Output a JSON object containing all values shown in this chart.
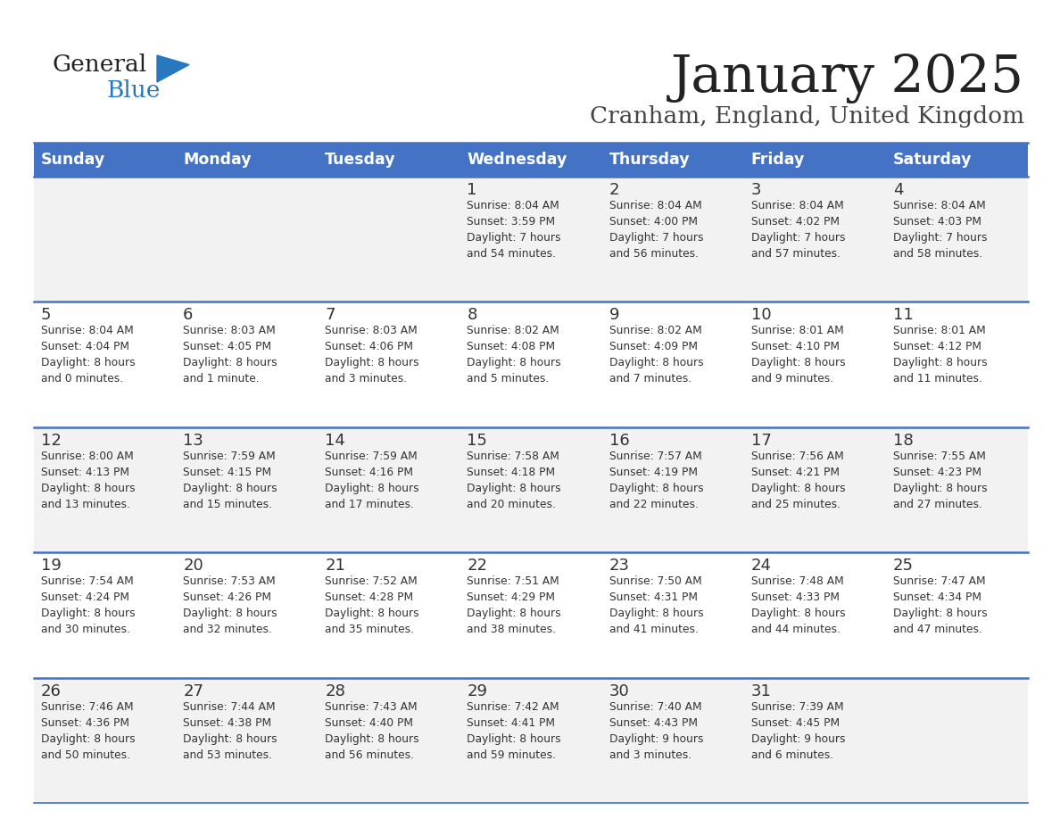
{
  "title": "January 2025",
  "subtitle": "Cranham, England, United Kingdom",
  "days_of_week": [
    "Sunday",
    "Monday",
    "Tuesday",
    "Wednesday",
    "Thursday",
    "Friday",
    "Saturday"
  ],
  "header_bg_color": "#4472C4",
  "header_text_color": "#FFFFFF",
  "cell_bg_even": "#F2F2F2",
  "cell_bg_odd": "#FFFFFF",
  "title_color": "#222222",
  "subtitle_color": "#444444",
  "day_num_color": "#333333",
  "cell_text_color": "#333333",
  "divider_color": "#4472C4",
  "logo_general_color": "#222222",
  "logo_blue_color": "#2878C0",
  "logo_triangle_color": "#2878C0",
  "calendar_data": [
    [
      {
        "day": null,
        "info": null
      },
      {
        "day": null,
        "info": null
      },
      {
        "day": null,
        "info": null
      },
      {
        "day": 1,
        "info": "Sunrise: 8:04 AM\nSunset: 3:59 PM\nDaylight: 7 hours\nand 54 minutes."
      },
      {
        "day": 2,
        "info": "Sunrise: 8:04 AM\nSunset: 4:00 PM\nDaylight: 7 hours\nand 56 minutes."
      },
      {
        "day": 3,
        "info": "Sunrise: 8:04 AM\nSunset: 4:02 PM\nDaylight: 7 hours\nand 57 minutes."
      },
      {
        "day": 4,
        "info": "Sunrise: 8:04 AM\nSunset: 4:03 PM\nDaylight: 7 hours\nand 58 minutes."
      }
    ],
    [
      {
        "day": 5,
        "info": "Sunrise: 8:04 AM\nSunset: 4:04 PM\nDaylight: 8 hours\nand 0 minutes."
      },
      {
        "day": 6,
        "info": "Sunrise: 8:03 AM\nSunset: 4:05 PM\nDaylight: 8 hours\nand 1 minute."
      },
      {
        "day": 7,
        "info": "Sunrise: 8:03 AM\nSunset: 4:06 PM\nDaylight: 8 hours\nand 3 minutes."
      },
      {
        "day": 8,
        "info": "Sunrise: 8:02 AM\nSunset: 4:08 PM\nDaylight: 8 hours\nand 5 minutes."
      },
      {
        "day": 9,
        "info": "Sunrise: 8:02 AM\nSunset: 4:09 PM\nDaylight: 8 hours\nand 7 minutes."
      },
      {
        "day": 10,
        "info": "Sunrise: 8:01 AM\nSunset: 4:10 PM\nDaylight: 8 hours\nand 9 minutes."
      },
      {
        "day": 11,
        "info": "Sunrise: 8:01 AM\nSunset: 4:12 PM\nDaylight: 8 hours\nand 11 minutes."
      }
    ],
    [
      {
        "day": 12,
        "info": "Sunrise: 8:00 AM\nSunset: 4:13 PM\nDaylight: 8 hours\nand 13 minutes."
      },
      {
        "day": 13,
        "info": "Sunrise: 7:59 AM\nSunset: 4:15 PM\nDaylight: 8 hours\nand 15 minutes."
      },
      {
        "day": 14,
        "info": "Sunrise: 7:59 AM\nSunset: 4:16 PM\nDaylight: 8 hours\nand 17 minutes."
      },
      {
        "day": 15,
        "info": "Sunrise: 7:58 AM\nSunset: 4:18 PM\nDaylight: 8 hours\nand 20 minutes."
      },
      {
        "day": 16,
        "info": "Sunrise: 7:57 AM\nSunset: 4:19 PM\nDaylight: 8 hours\nand 22 minutes."
      },
      {
        "day": 17,
        "info": "Sunrise: 7:56 AM\nSunset: 4:21 PM\nDaylight: 8 hours\nand 25 minutes."
      },
      {
        "day": 18,
        "info": "Sunrise: 7:55 AM\nSunset: 4:23 PM\nDaylight: 8 hours\nand 27 minutes."
      }
    ],
    [
      {
        "day": 19,
        "info": "Sunrise: 7:54 AM\nSunset: 4:24 PM\nDaylight: 8 hours\nand 30 minutes."
      },
      {
        "day": 20,
        "info": "Sunrise: 7:53 AM\nSunset: 4:26 PM\nDaylight: 8 hours\nand 32 minutes."
      },
      {
        "day": 21,
        "info": "Sunrise: 7:52 AM\nSunset: 4:28 PM\nDaylight: 8 hours\nand 35 minutes."
      },
      {
        "day": 22,
        "info": "Sunrise: 7:51 AM\nSunset: 4:29 PM\nDaylight: 8 hours\nand 38 minutes."
      },
      {
        "day": 23,
        "info": "Sunrise: 7:50 AM\nSunset: 4:31 PM\nDaylight: 8 hours\nand 41 minutes."
      },
      {
        "day": 24,
        "info": "Sunrise: 7:48 AM\nSunset: 4:33 PM\nDaylight: 8 hours\nand 44 minutes."
      },
      {
        "day": 25,
        "info": "Sunrise: 7:47 AM\nSunset: 4:34 PM\nDaylight: 8 hours\nand 47 minutes."
      }
    ],
    [
      {
        "day": 26,
        "info": "Sunrise: 7:46 AM\nSunset: 4:36 PM\nDaylight: 8 hours\nand 50 minutes."
      },
      {
        "day": 27,
        "info": "Sunrise: 7:44 AM\nSunset: 4:38 PM\nDaylight: 8 hours\nand 53 minutes."
      },
      {
        "day": 28,
        "info": "Sunrise: 7:43 AM\nSunset: 4:40 PM\nDaylight: 8 hours\nand 56 minutes."
      },
      {
        "day": 29,
        "info": "Sunrise: 7:42 AM\nSunset: 4:41 PM\nDaylight: 8 hours\nand 59 minutes."
      },
      {
        "day": 30,
        "info": "Sunrise: 7:40 AM\nSunset: 4:43 PM\nDaylight: 9 hours\nand 3 minutes."
      },
      {
        "day": 31,
        "info": "Sunrise: 7:39 AM\nSunset: 4:45 PM\nDaylight: 9 hours\nand 6 minutes."
      },
      {
        "day": null,
        "info": null
      }
    ]
  ]
}
